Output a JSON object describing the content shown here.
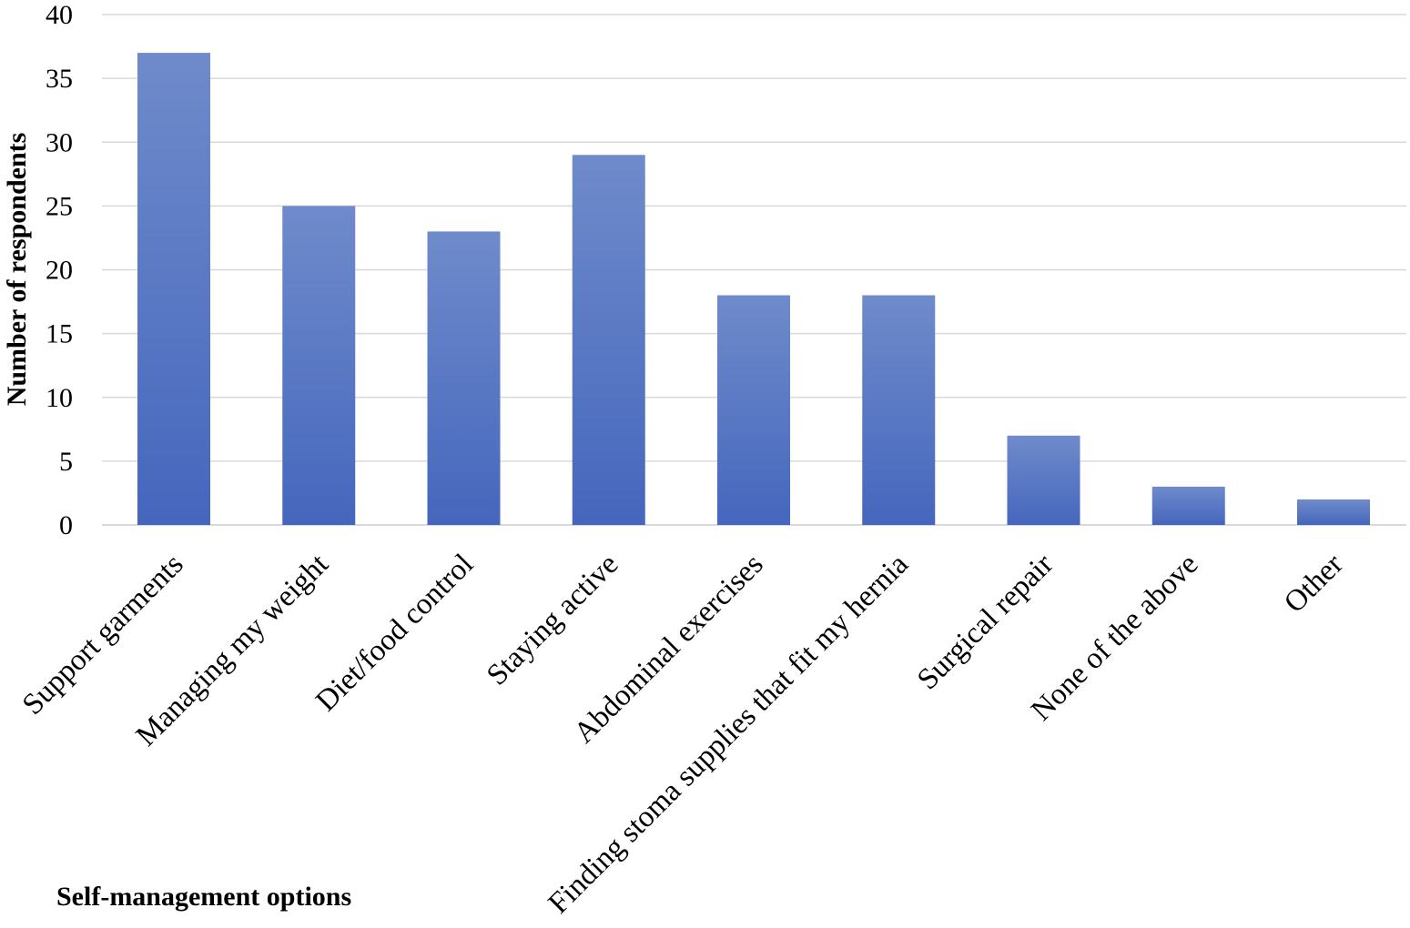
{
  "chart_data": {
    "type": "bar",
    "categories": [
      "Support garments",
      "Managing my weight",
      "Diet/food control",
      "Staying active",
      "Abdominal exercises",
      "Finding stoma supplies that fit my hernia",
      "Surgical repair",
      "None of the above",
      "Other"
    ],
    "values": [
      37,
      25,
      23,
      29,
      18,
      18,
      7,
      3,
      2
    ],
    "xlabel": "Self-management options",
    "ylabel": "Number of respondents",
    "ylim": [
      0,
      40
    ],
    "yticks": [
      0,
      5,
      10,
      15,
      20,
      25,
      30,
      35,
      40
    ],
    "grid": true,
    "legend": "none",
    "colors": {
      "bar_top": "#6f8bcb",
      "bar_bottom": "#4566bd",
      "grid": "#d9d9d9"
    }
  }
}
